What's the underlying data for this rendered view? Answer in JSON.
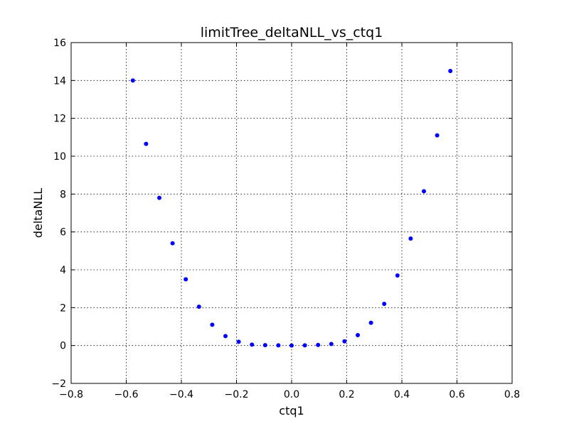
{
  "chart_data": {
    "type": "scatter",
    "title": "limitTree_deltaNLL_vs_ctq1",
    "xlabel": "ctq1",
    "ylabel": "deltaNLL",
    "xlim": [
      -0.8,
      0.8
    ],
    "ylim": [
      -2,
      16
    ],
    "xticks": [
      -0.8,
      -0.6,
      -0.4,
      -0.2,
      0.0,
      0.2,
      0.4,
      0.6,
      0.8
    ],
    "xtick_labels": [
      "−0.8",
      "−0.6",
      "−0.4",
      "−0.2",
      "0.0",
      "0.2",
      "0.4",
      "0.6",
      "0.8"
    ],
    "yticks": [
      -2,
      0,
      2,
      4,
      6,
      8,
      10,
      12,
      14,
      16
    ],
    "ytick_labels": [
      "−2",
      "0",
      "2",
      "4",
      "6",
      "8",
      "10",
      "12",
      "14",
      "16"
    ],
    "grid": true,
    "marker_color": "#0000ff",
    "series": [
      {
        "x": [
          -0.576,
          -0.528,
          -0.48,
          -0.432,
          -0.384,
          -0.336,
          -0.288,
          -0.24,
          -0.192,
          -0.144,
          -0.096,
          -0.048,
          0.0,
          0.048,
          0.096,
          0.144,
          0.192,
          0.24,
          0.288,
          0.336,
          0.384,
          0.432,
          0.48,
          0.528,
          0.576
        ],
        "y": [
          14.0,
          10.65,
          7.8,
          5.4,
          3.5,
          2.05,
          1.1,
          0.5,
          0.2,
          0.05,
          0.02,
          0.01,
          0.0,
          0.01,
          0.03,
          0.08,
          0.22,
          0.55,
          1.2,
          2.2,
          3.7,
          5.65,
          8.15,
          11.1,
          14.5
        ]
      }
    ]
  }
}
